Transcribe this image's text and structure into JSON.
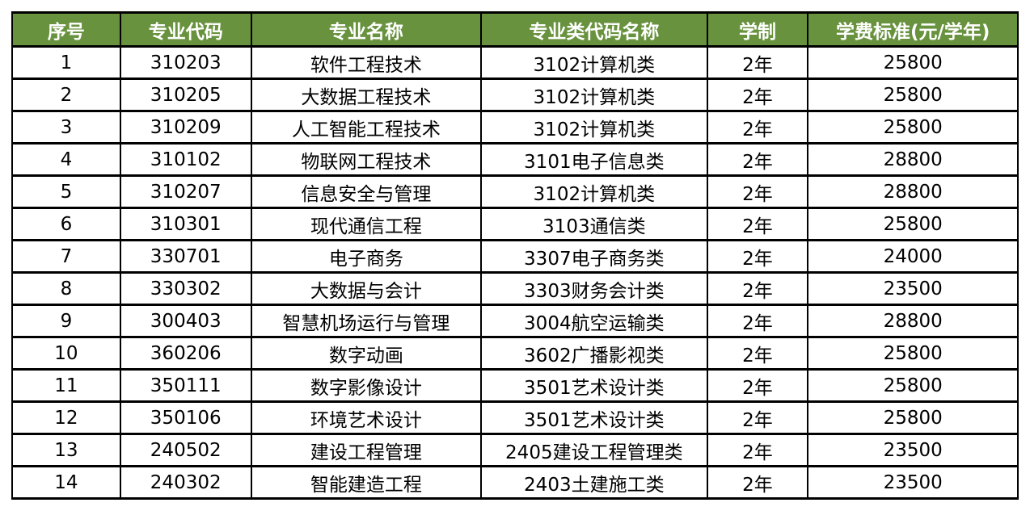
{
  "colors": {
    "header_bg": "#68923E",
    "header_text": "#ffffff",
    "border": "#000000",
    "body_text": "#000000"
  },
  "table": {
    "columns": [
      "序号",
      "专业代码",
      "专业名称",
      "专业类代码名称",
      "学制",
      "学费标准(元/学年)"
    ],
    "rows": [
      [
        "1",
        "310203",
        "软件工程技术",
        "3102计算机类",
        "2年",
        "25800"
      ],
      [
        "2",
        "310205",
        "大数据工程技术",
        "3102计算机类",
        "2年",
        "25800"
      ],
      [
        "3",
        "310209",
        "人工智能工程技术",
        "3102计算机类",
        "2年",
        "25800"
      ],
      [
        "4",
        "310102",
        "物联网工程技术",
        "3101电子信息类",
        "2年",
        "28800"
      ],
      [
        "5",
        "310207",
        "信息安全与管理",
        "3102计算机类",
        "2年",
        "28800"
      ],
      [
        "6",
        "310301",
        "现代通信工程",
        "3103通信类",
        "2年",
        "25800"
      ],
      [
        "7",
        "330701",
        "电子商务",
        "3307电子商务类",
        "2年",
        "24000"
      ],
      [
        "8",
        "330302",
        "大数据与会计",
        "3303财务会计类",
        "2年",
        "23500"
      ],
      [
        "9",
        "300403",
        "智慧机场运行与管理",
        "3004航空运输类",
        "2年",
        "28800"
      ],
      [
        "10",
        "360206",
        "数字动画",
        "3602广播影视类",
        "2年",
        "25800"
      ],
      [
        "11",
        "350111",
        "数字影像设计",
        "3501艺术设计类",
        "2年",
        "25800"
      ],
      [
        "12",
        "350106",
        "环境艺术设计",
        "3501艺术设计类",
        "2年",
        "25800"
      ],
      [
        "13",
        "240502",
        "建设工程管理",
        "2405建设工程管理类",
        "2年",
        "23500"
      ],
      [
        "14",
        "240302",
        "智能建造工程",
        "2403土建施工类",
        "2年",
        "23500"
      ]
    ]
  }
}
